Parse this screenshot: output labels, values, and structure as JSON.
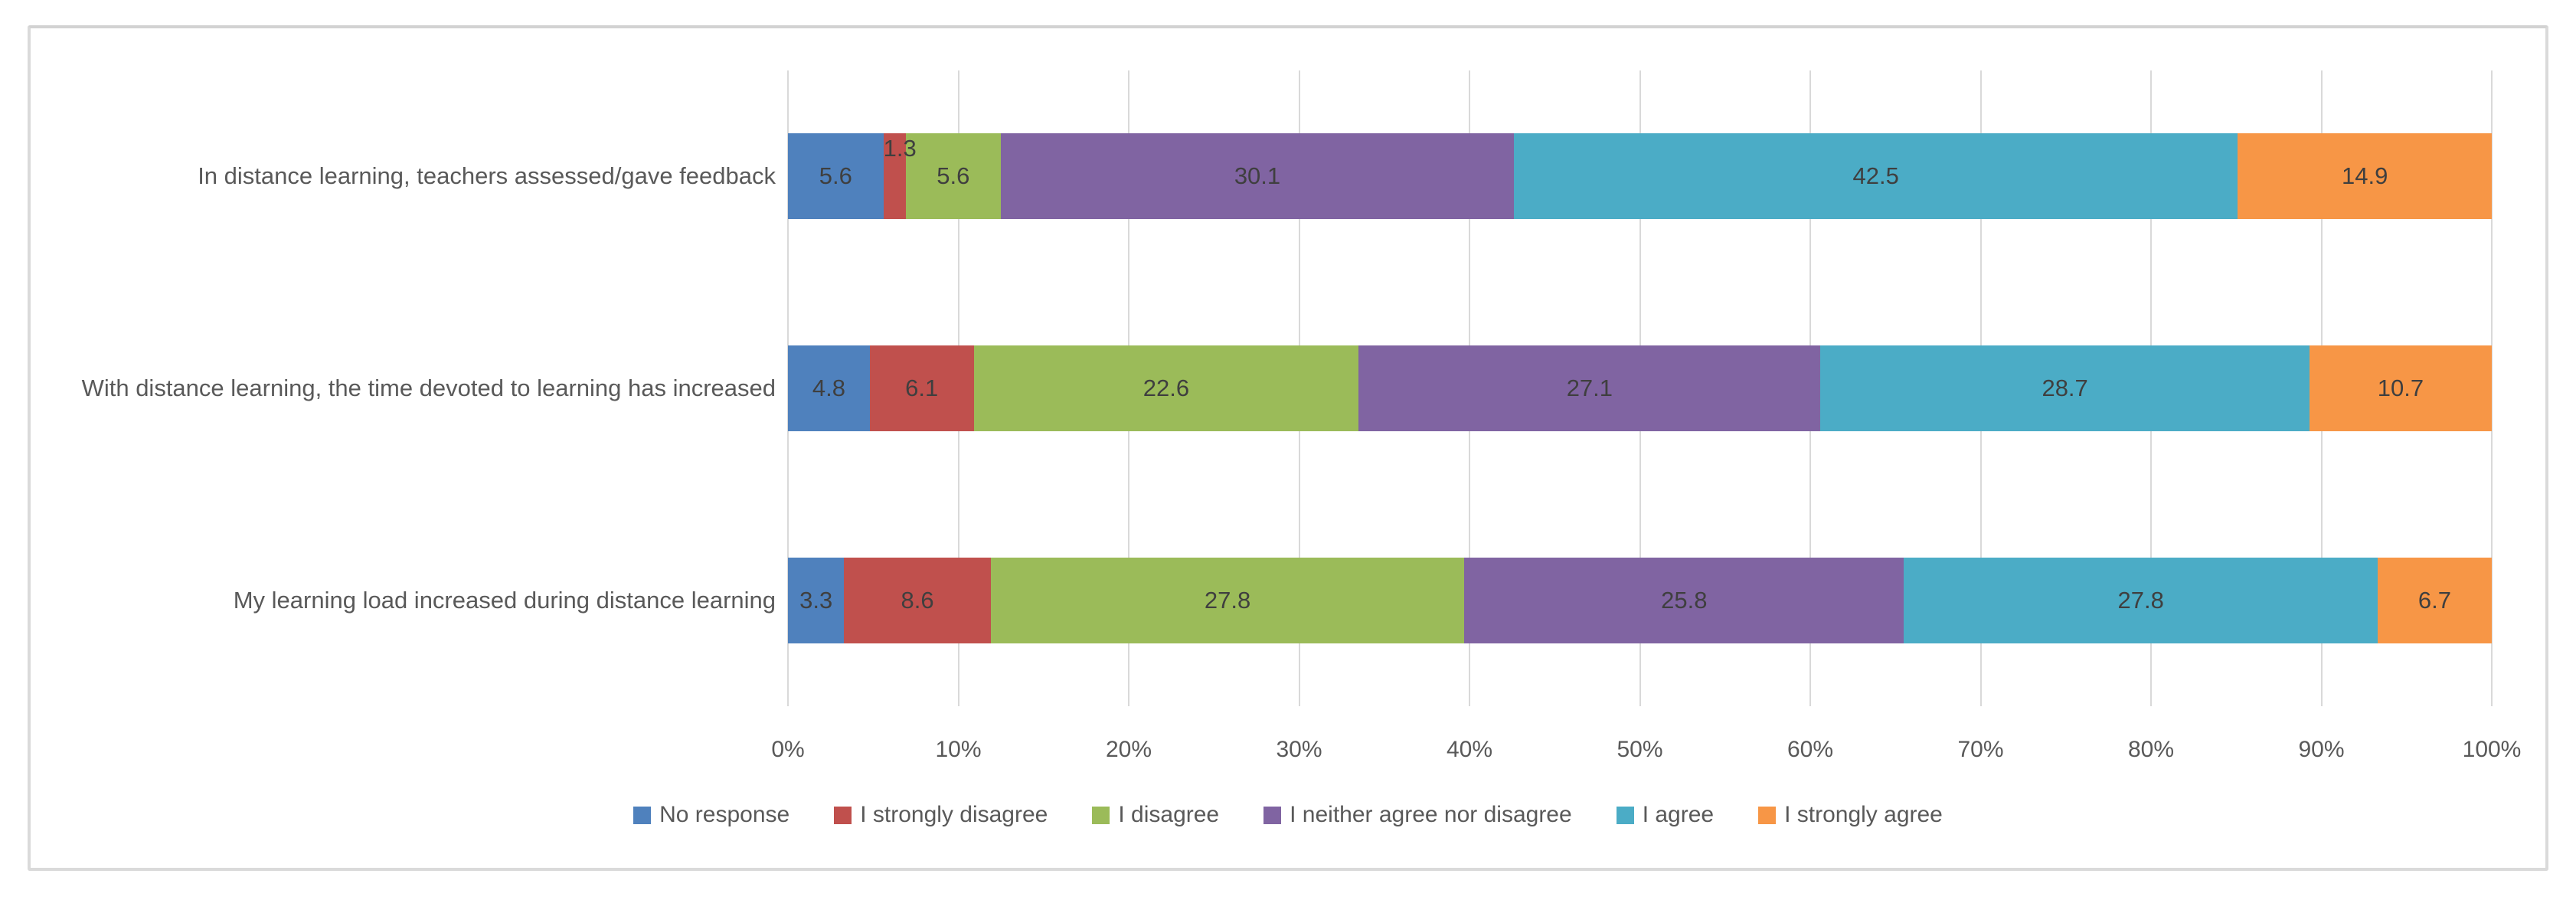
{
  "chart_data": {
    "type": "bar",
    "orientation": "horizontal-stacked",
    "title": "",
    "categories": [
      "In distance learning, teachers assessed/gave feedback",
      "With distance learning, the time devoted to learning has increased",
      "My learning load increased during distance learning"
    ],
    "series": [
      {
        "name": "No response",
        "color": "#4F81BD",
        "values": [
          5.6,
          4.8,
          3.3
        ]
      },
      {
        "name": "I strongly disagree",
        "color": "#C0504D",
        "values": [
          1.3,
          6.1,
          8.6
        ]
      },
      {
        "name": "I disagree",
        "color": "#9BBB59",
        "values": [
          5.6,
          22.6,
          27.8
        ]
      },
      {
        "name": "I neither agree nor disagree",
        "color": "#8064A2",
        "values": [
          30.1,
          27.1,
          25.8
        ]
      },
      {
        "name": "I agree",
        "color": "#4BACC6",
        "values": [
          42.5,
          28.7,
          27.8
        ]
      },
      {
        "name": "I strongly agree",
        "color": "#F79646",
        "values": [
          14.9,
          10.7,
          6.7
        ]
      }
    ],
    "x_ticks": [
      "0%",
      "10%",
      "20%",
      "30%",
      "40%",
      "50%",
      "60%",
      "70%",
      "80%",
      "90%",
      "100%"
    ],
    "xlim": [
      0,
      100
    ],
    "grid": true,
    "legend_position": "bottom",
    "data_labels_shown": true
  },
  "styles": {
    "grid_color": "#d9d9d9",
    "data_label_color": "#3f3f3f",
    "axis_text_color": "#595959",
    "frame_border_color": "#dadada"
  }
}
